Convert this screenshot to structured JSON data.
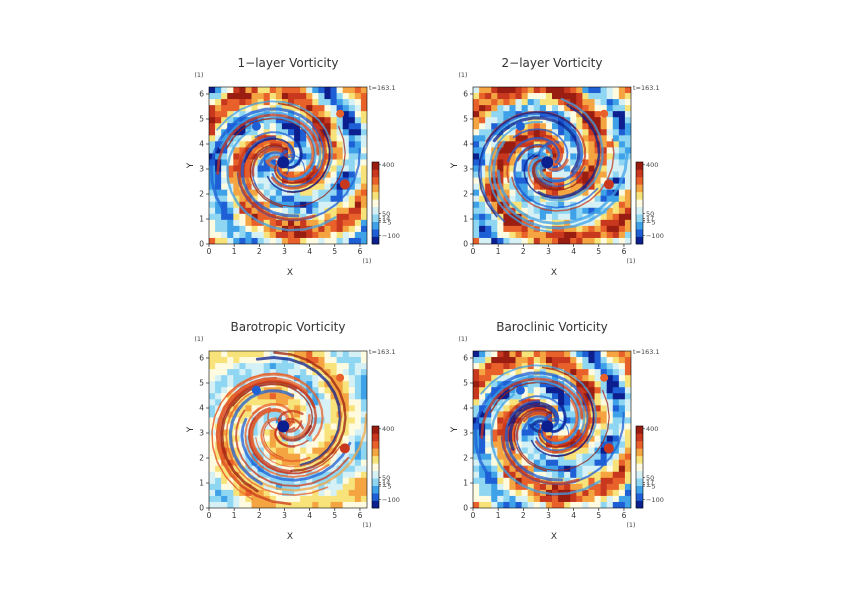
{
  "colors": {
    "scale": [
      "#0b1f8f",
      "#1f5fd6",
      "#3fa2e8",
      "#8fd6f2",
      "#d6f1f6",
      "#fffbe0",
      "#f8e27a",
      "#f4a541",
      "#e8602a",
      "#c8381e",
      "#9a1d12"
    ],
    "time_label": "#555555"
  },
  "chart_data": [
    {
      "type": "heatmap",
      "title": "1−layer Vorticity",
      "xlabel": "X",
      "ylabel": "Y",
      "xunit": "(1)",
      "yunit": "(1)",
      "xlim": [
        0,
        6.28
      ],
      "ylim": [
        0,
        6.28
      ],
      "xticks": [
        "0",
        "1",
        "2",
        "3",
        "4",
        "5",
        "6"
      ],
      "yticks": [
        "0",
        "1",
        "2",
        "3",
        "4",
        "5",
        "6"
      ],
      "time": "t=163.1",
      "colorbar": {
        "range": [
          -160,
          420
        ],
        "labels": [
          "400",
          "50",
          "14",
          "1",
          "−5",
          "−100"
        ],
        "label_values": [
          400,
          55,
          22,
          8,
          -5,
          -100
        ]
      },
      "seed": 11,
      "bias": 0.05,
      "warmth": 0.5
    },
    {
      "type": "heatmap",
      "title": "2−layer Vorticity",
      "xlabel": "X",
      "ylabel": "Y",
      "xunit": "(1)",
      "yunit": "(1)",
      "xlim": [
        0,
        6.28
      ],
      "ylim": [
        0,
        6.28
      ],
      "xticks": [
        "0",
        "1",
        "2",
        "3",
        "4",
        "5",
        "6"
      ],
      "yticks": [
        "0",
        "1",
        "2",
        "3",
        "4",
        "5",
        "6"
      ],
      "time": "t=163.1",
      "colorbar": {
        "range": [
          -160,
          420
        ],
        "labels": [
          "400",
          "50",
          "17",
          "1",
          "−5",
          "−100"
        ],
        "label_values": [
          400,
          55,
          22,
          8,
          -5,
          -100
        ]
      },
      "seed": 29,
      "bias": 0.25,
      "warmth": 0.65
    },
    {
      "type": "heatmap",
      "title": "Barotropic Vorticity",
      "xlabel": "X",
      "ylabel": "Y",
      "xunit": "(1)",
      "yunit": "(1)",
      "xlim": [
        0,
        6.28
      ],
      "ylim": [
        0,
        6.28
      ],
      "xticks": [
        "0",
        "1",
        "2",
        "3",
        "4",
        "5",
        "6"
      ],
      "yticks": [
        "0",
        "1",
        "2",
        "3",
        "4",
        "5",
        "6"
      ],
      "time": "t=163.1",
      "colorbar": {
        "range": [
          -160,
          420
        ],
        "labels": [
          "400",
          "50",
          "14",
          "1",
          "−5",
          "−100"
        ],
        "label_values": [
          400,
          55,
          22,
          8,
          -5,
          -100
        ]
      },
      "seed": 47,
      "bias": 0.1,
      "warmth": 0.2
    },
    {
      "type": "heatmap",
      "title": "Baroclinic Vorticity",
      "xlabel": "X",
      "ylabel": "Y",
      "xunit": "(1)",
      "yunit": "(1)",
      "xlim": [
        0,
        6.28
      ],
      "ylim": [
        0,
        6.28
      ],
      "xticks": [
        "0",
        "1",
        "2",
        "3",
        "4",
        "5",
        "6"
      ],
      "yticks": [
        "0",
        "1",
        "2",
        "3",
        "4",
        "5",
        "6"
      ],
      "time": "t=163.1",
      "colorbar": {
        "range": [
          -160,
          420
        ],
        "labels": [
          "400",
          "50",
          "17",
          "1",
          "−5",
          "−100"
        ],
        "label_values": [
          400,
          55,
          22,
          8,
          -5,
          -100
        ]
      },
      "seed": 11,
      "bias": 0.05,
      "warmth": 0.55
    }
  ]
}
